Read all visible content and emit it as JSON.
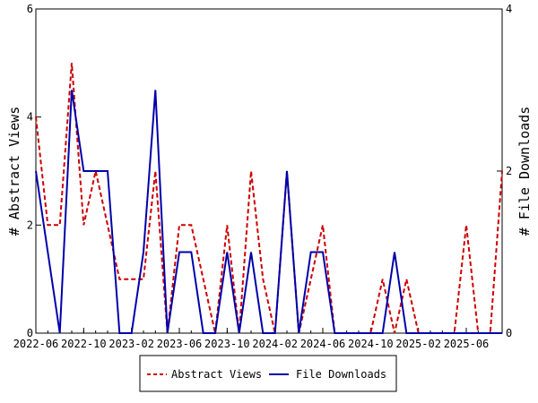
{
  "chart_data": {
    "type": "line",
    "title": "",
    "xlabel": "",
    "ylabel_left": "# Abstract Views",
    "ylabel_right": "# File Downloads",
    "y_left_lim": [
      0,
      6
    ],
    "y_left_ticks": [
      0,
      2,
      4,
      6
    ],
    "y_right_lim": [
      0,
      4
    ],
    "y_right_ticks": [
      0,
      2,
      4
    ],
    "x_start": "2022-06",
    "x_end": "2025-09",
    "x_tick_labels": [
      "2022-06",
      "2022-10",
      "2023-02",
      "2023-06",
      "2023-10",
      "2024-02",
      "2024-06",
      "2024-10",
      "2025-02",
      "2025-06"
    ],
    "grid": false,
    "legend_placement": "bottom-center",
    "x": [
      "2022-06",
      "2022-07",
      "2022-08",
      "2022-09",
      "2022-10",
      "2022-11",
      "2022-12",
      "2023-01",
      "2023-02",
      "2023-03",
      "2023-04",
      "2023-05",
      "2023-06",
      "2023-07",
      "2023-08",
      "2023-09",
      "2023-10",
      "2023-11",
      "2023-12",
      "2024-01",
      "2024-02",
      "2024-03",
      "2024-04",
      "2024-05",
      "2024-06",
      "2024-07",
      "2024-08",
      "2024-09",
      "2024-10",
      "2024-11",
      "2024-12",
      "2025-01",
      "2025-02",
      "2025-03",
      "2025-04",
      "2025-05",
      "2025-06",
      "2025-07",
      "2025-08",
      "2025-09"
    ],
    "series": [
      {
        "name": "Abstract Views",
        "axis": "left",
        "color": "#cc0000",
        "style": "dashed",
        "values": [
          4,
          2,
          2,
          5,
          2,
          3,
          2,
          1,
          1,
          1,
          3,
          0,
          2,
          2,
          1,
          0,
          2,
          0,
          3,
          1,
          0,
          3,
          0,
          1,
          2,
          0,
          0,
          0,
          0,
          1,
          0,
          1,
          0,
          0,
          0,
          0,
          2,
          0,
          0,
          3
        ]
      },
      {
        "name": "File Downloads",
        "axis": "right",
        "color": "#0000aa",
        "style": "solid",
        "values": [
          2,
          1,
          0,
          3,
          2,
          2,
          2,
          0,
          0,
          1,
          3,
          0,
          1,
          1,
          0,
          0,
          1,
          0,
          1,
          0,
          0,
          2,
          0,
          1,
          1,
          0,
          0,
          0,
          0,
          0,
          1,
          0,
          0,
          0,
          0,
          0,
          0,
          0,
          0,
          0
        ]
      }
    ]
  }
}
